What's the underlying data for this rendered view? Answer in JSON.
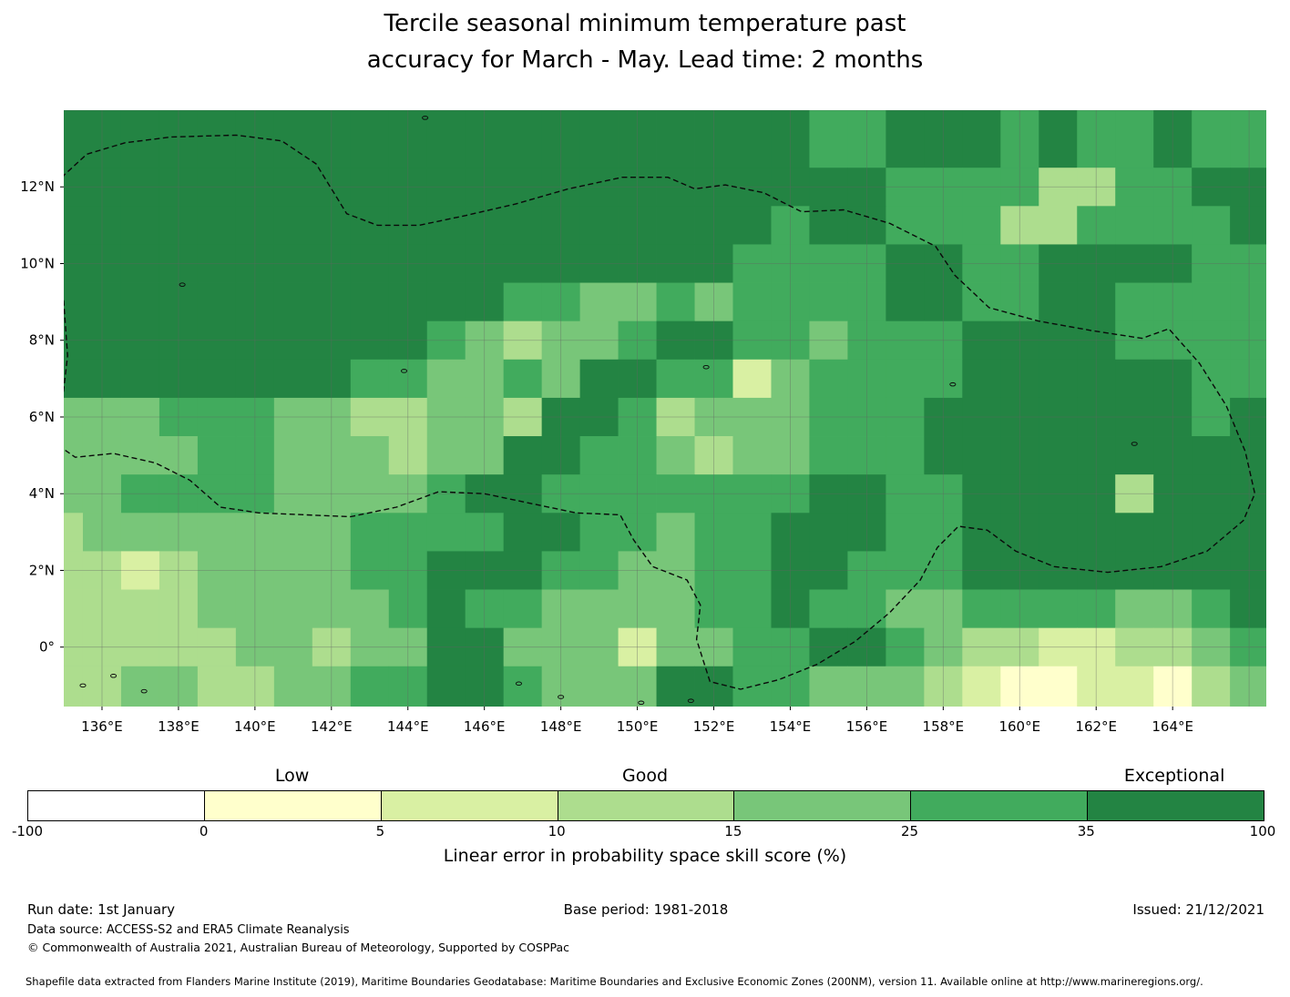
{
  "title": {
    "line1": "Tercile seasonal minimum temperature past",
    "line2": "accuracy for March - May. Lead time: 2 months"
  },
  "chart_data": {
    "type": "heatmap",
    "title": "Tercile seasonal minimum temperature past accuracy for March - May. Lead time: 2 months",
    "lon_window": [
      135.0,
      166.45
    ],
    "lat_window": [
      -1.55,
      14.0
    ],
    "grid_origin_lon": 134.5,
    "grid_row_top_center_lat": 13,
    "grid_cell_size_deg": 1,
    "grid_encoding": "Each character is a palette index (0-6) of palette_colors; rows run north to south (centers 13N to 1S), columns west to east from 134.5E in 1-degree steps",
    "palette_colors": [
      "#ffffff",
      "#ffffcc",
      "#d9f0a3",
      "#addd8e",
      "#78c679",
      "#41ab5d",
      "#238443"
    ],
    "palette_bounds": [
      -100,
      0,
      5,
      10,
      15,
      25,
      35,
      100
    ],
    "skill_grid_rows": [
      "66666666666666666666556665655655",
      "66666666666666666666665555335566",
      "66666666666666666665665553355556",
      "66666666666666666655556655666655",
      "66666666666655445455556655665555",
      "66666666665434456655455566665555",
      "66666666554454665524555566666655",
      "44455544334436653444555666666656",
      "44445544434466554344555666666666",
      "44555544445665555555665566663666",
      "34444444555566554556665566666666",
      "33234444556665544556655566666666",
      "33334444456554444556554455554456",
      "33333443446644424455665433223345",
      "33443344556654446655444321122134"
    ],
    "x_ticks": [
      {
        "lon": 136,
        "label": "136°E"
      },
      {
        "lon": 138,
        "label": "138°E"
      },
      {
        "lon": 140,
        "label": "140°E"
      },
      {
        "lon": 142,
        "label": "142°E"
      },
      {
        "lon": 144,
        "label": "144°E"
      },
      {
        "lon": 146,
        "label": "146°E"
      },
      {
        "lon": 148,
        "label": "148°E"
      },
      {
        "lon": 150,
        "label": "150°E"
      },
      {
        "lon": 152,
        "label": "152°E"
      },
      {
        "lon": 154,
        "label": "154°E"
      },
      {
        "lon": 156,
        "label": "156°E"
      },
      {
        "lon": 158,
        "label": "158°E"
      },
      {
        "lon": 160,
        "label": "160°E"
      },
      {
        "lon": 162,
        "label": "162°E"
      },
      {
        "lon": 164,
        "label": "164°E"
      }
    ],
    "y_ticks": [
      {
        "lat": 12,
        "label": "12°N"
      },
      {
        "lat": 10,
        "label": "10°N"
      },
      {
        "lat": 8,
        "label": "8°N"
      },
      {
        "lat": 6,
        "label": "6°N"
      },
      {
        "lat": 4,
        "label": "4°N"
      },
      {
        "lat": 2,
        "label": "2°N"
      },
      {
        "lat": 0,
        "label": "0°"
      }
    ],
    "colorbar": {
      "tick_labels": [
        "-100",
        "0",
        "5",
        "10",
        "15",
        "25",
        "35",
        "100"
      ],
      "category_labels": [
        {
          "label": "Low",
          "segment_index": 1
        },
        {
          "label": "Good",
          "segment_index": 3
        },
        {
          "label": "Exceptional",
          "segment_index": 6
        }
      ],
      "axis_label": "Linear error in probability space skill score (%)"
    },
    "eez_boundary": [
      [
        134.6,
        11.4
      ],
      [
        135.0,
        12.3
      ],
      [
        135.6,
        12.85
      ],
      [
        136.6,
        13.15
      ],
      [
        137.8,
        13.3
      ],
      [
        139.5,
        13.35
      ],
      [
        140.7,
        13.2
      ],
      [
        141.6,
        12.6
      ],
      [
        142.4,
        11.3
      ],
      [
        143.2,
        11.0
      ],
      [
        144.3,
        11.0
      ],
      [
        145.5,
        11.25
      ],
      [
        146.8,
        11.55
      ],
      [
        148.2,
        11.95
      ],
      [
        149.6,
        12.25
      ],
      [
        150.8,
        12.25
      ],
      [
        151.5,
        11.95
      ],
      [
        152.3,
        12.05
      ],
      [
        153.3,
        11.85
      ],
      [
        154.3,
        11.35
      ],
      [
        155.4,
        11.4
      ],
      [
        156.6,
        11.05
      ],
      [
        157.8,
        10.45
      ],
      [
        158.3,
        9.7
      ],
      [
        159.2,
        8.85
      ],
      [
        160.5,
        8.5
      ],
      [
        161.9,
        8.25
      ],
      [
        163.2,
        8.05
      ],
      [
        163.9,
        8.3
      ],
      [
        164.7,
        7.4
      ],
      [
        165.4,
        6.3
      ],
      [
        165.9,
        5.1
      ],
      [
        166.15,
        4.0
      ],
      [
        165.85,
        3.3
      ],
      [
        164.9,
        2.5
      ],
      [
        163.7,
        2.1
      ],
      [
        162.3,
        1.95
      ],
      [
        160.9,
        2.1
      ],
      [
        159.9,
        2.5
      ],
      [
        159.15,
        3.05
      ],
      [
        158.4,
        3.15
      ],
      [
        157.85,
        2.6
      ],
      [
        157.4,
        1.75
      ],
      [
        156.6,
        0.9
      ],
      [
        155.7,
        0.15
      ],
      [
        154.7,
        -0.45
      ],
      [
        153.7,
        -0.85
      ],
      [
        152.7,
        -1.1
      ],
      [
        151.9,
        -0.9
      ],
      [
        151.55,
        0.2
      ],
      [
        151.65,
        1.1
      ],
      [
        151.3,
        1.75
      ],
      [
        150.4,
        2.1
      ],
      [
        149.9,
        2.8
      ],
      [
        149.55,
        3.45
      ],
      [
        148.4,
        3.5
      ],
      [
        147.2,
        3.75
      ],
      [
        146.0,
        4.0
      ],
      [
        144.8,
        4.05
      ],
      [
        143.7,
        3.65
      ],
      [
        142.5,
        3.4
      ],
      [
        141.3,
        3.45
      ],
      [
        140.1,
        3.5
      ],
      [
        139.1,
        3.65
      ],
      [
        138.3,
        4.35
      ],
      [
        137.4,
        4.8
      ],
      [
        136.3,
        5.05
      ],
      [
        135.3,
        4.95
      ],
      [
        134.8,
        5.3
      ],
      [
        134.95,
        6.3
      ],
      [
        135.1,
        7.6
      ],
      [
        135.0,
        9.0
      ],
      [
        134.85,
        10.2
      ],
      [
        134.6,
        11.4
      ]
    ],
    "islands": [
      [
        144.45,
        13.8
      ],
      [
        138.1,
        9.45
      ],
      [
        143.9,
        7.2
      ],
      [
        151.8,
        7.3
      ],
      [
        158.25,
        6.85
      ],
      [
        163.0,
        5.3
      ],
      [
        134.75,
        -0.7
      ],
      [
        135.5,
        -1.0
      ],
      [
        136.3,
        -0.75
      ],
      [
        137.1,
        -1.15
      ],
      [
        146.9,
        -0.95
      ],
      [
        148.0,
        -1.3
      ],
      [
        150.1,
        -1.45
      ],
      [
        151.4,
        -1.4
      ]
    ]
  },
  "footer": {
    "run_date": "Run date: 1st January",
    "base_period": "Base period: 1981-2018",
    "issued": "Issued: 21/12/2021",
    "data_source": "Data source: ACCESS-S2 and ERA5 Climate Reanalysis",
    "copyright": "© Commonwealth of Australia 2021, Australian Bureau of Meteorology, Supported by COSPPac",
    "shapefile_note": "Shapefile data extracted from Flanders Marine Institute (2019), Maritime Boundaries Geodatabase: Maritime Boundaries and Exclusive Economic Zones (200NM), version 11. Available online at http://www.marineregions.org/."
  }
}
